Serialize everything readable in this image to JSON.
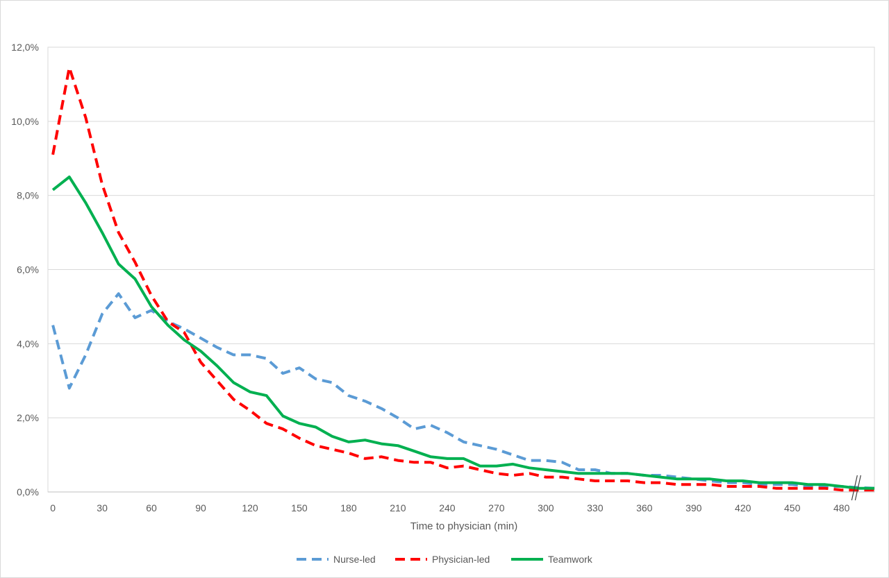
{
  "chart_data": {
    "type": "line",
    "xlabel": "Time to physician (min)",
    "ylabel": "",
    "x_ticks": [
      "0",
      "30",
      "60",
      "90",
      "120",
      "150",
      "180",
      "210",
      "240",
      "270",
      "300",
      "330",
      "360",
      "390",
      "420",
      "450",
      "480"
    ],
    "y_ticks": [
      "0,0%",
      "2,0%",
      "4,0%",
      "6,0%",
      "8,0%",
      "10,0%",
      "12,0%"
    ],
    "xlim": [
      -3,
      500
    ],
    "ylim": [
      0,
      12
    ],
    "grid": "horizontal",
    "legend_position": "bottom",
    "axis_break": "x-axis near 490",
    "x": [
      0,
      10,
      20,
      30,
      40,
      50,
      60,
      70,
      80,
      90,
      100,
      110,
      120,
      130,
      140,
      150,
      160,
      170,
      180,
      190,
      200,
      210,
      220,
      230,
      240,
      250,
      260,
      270,
      280,
      290,
      300,
      310,
      320,
      330,
      340,
      350,
      360,
      370,
      380,
      390,
      400,
      410,
      420,
      430,
      440,
      450,
      460,
      470,
      480,
      490,
      500
    ],
    "series": [
      {
        "name": "Nurse-led",
        "color": "#5b9bd5",
        "style": "dashed",
        "values": [
          4.5,
          2.8,
          3.7,
          4.8,
          5.35,
          4.7,
          4.9,
          4.6,
          4.4,
          4.15,
          3.9,
          3.7,
          3.7,
          3.6,
          3.2,
          3.35,
          3.05,
          2.95,
          2.6,
          2.45,
          2.25,
          2.0,
          1.7,
          1.8,
          1.6,
          1.35,
          1.25,
          1.15,
          1.0,
          0.85,
          0.85,
          0.8,
          0.6,
          0.6,
          0.5,
          0.5,
          0.45,
          0.45,
          0.4,
          0.35,
          0.3,
          0.25,
          0.25,
          0.2,
          0.2,
          0.2,
          0.15,
          0.15,
          0.15,
          0.12,
          0.1
        ]
      },
      {
        "name": "Physician-led",
        "color": "#ff0000",
        "style": "dashed",
        "values": [
          9.1,
          11.45,
          10.1,
          8.3,
          7.0,
          6.2,
          5.3,
          4.6,
          4.3,
          3.5,
          3.0,
          2.5,
          2.2,
          1.85,
          1.7,
          1.45,
          1.25,
          1.15,
          1.05,
          0.9,
          0.95,
          0.85,
          0.8,
          0.8,
          0.65,
          0.7,
          0.6,
          0.5,
          0.45,
          0.5,
          0.4,
          0.4,
          0.35,
          0.3,
          0.3,
          0.3,
          0.25,
          0.25,
          0.2,
          0.2,
          0.2,
          0.15,
          0.15,
          0.15,
          0.1,
          0.1,
          0.1,
          0.1,
          0.05,
          0.05,
          0.05
        ]
      },
      {
        "name": "Teamwork",
        "color": "#00b050",
        "style": "solid",
        "values": [
          8.15,
          8.5,
          7.8,
          7.0,
          6.15,
          5.75,
          5.0,
          4.5,
          4.1,
          3.8,
          3.4,
          2.95,
          2.7,
          2.6,
          2.05,
          1.85,
          1.75,
          1.5,
          1.35,
          1.4,
          1.3,
          1.25,
          1.1,
          0.95,
          0.9,
          0.9,
          0.7,
          0.7,
          0.75,
          0.65,
          0.6,
          0.55,
          0.5,
          0.5,
          0.5,
          0.5,
          0.45,
          0.4,
          0.35,
          0.35,
          0.35,
          0.3,
          0.3,
          0.25,
          0.25,
          0.25,
          0.2,
          0.2,
          0.15,
          0.1,
          0.1
        ]
      }
    ]
  }
}
